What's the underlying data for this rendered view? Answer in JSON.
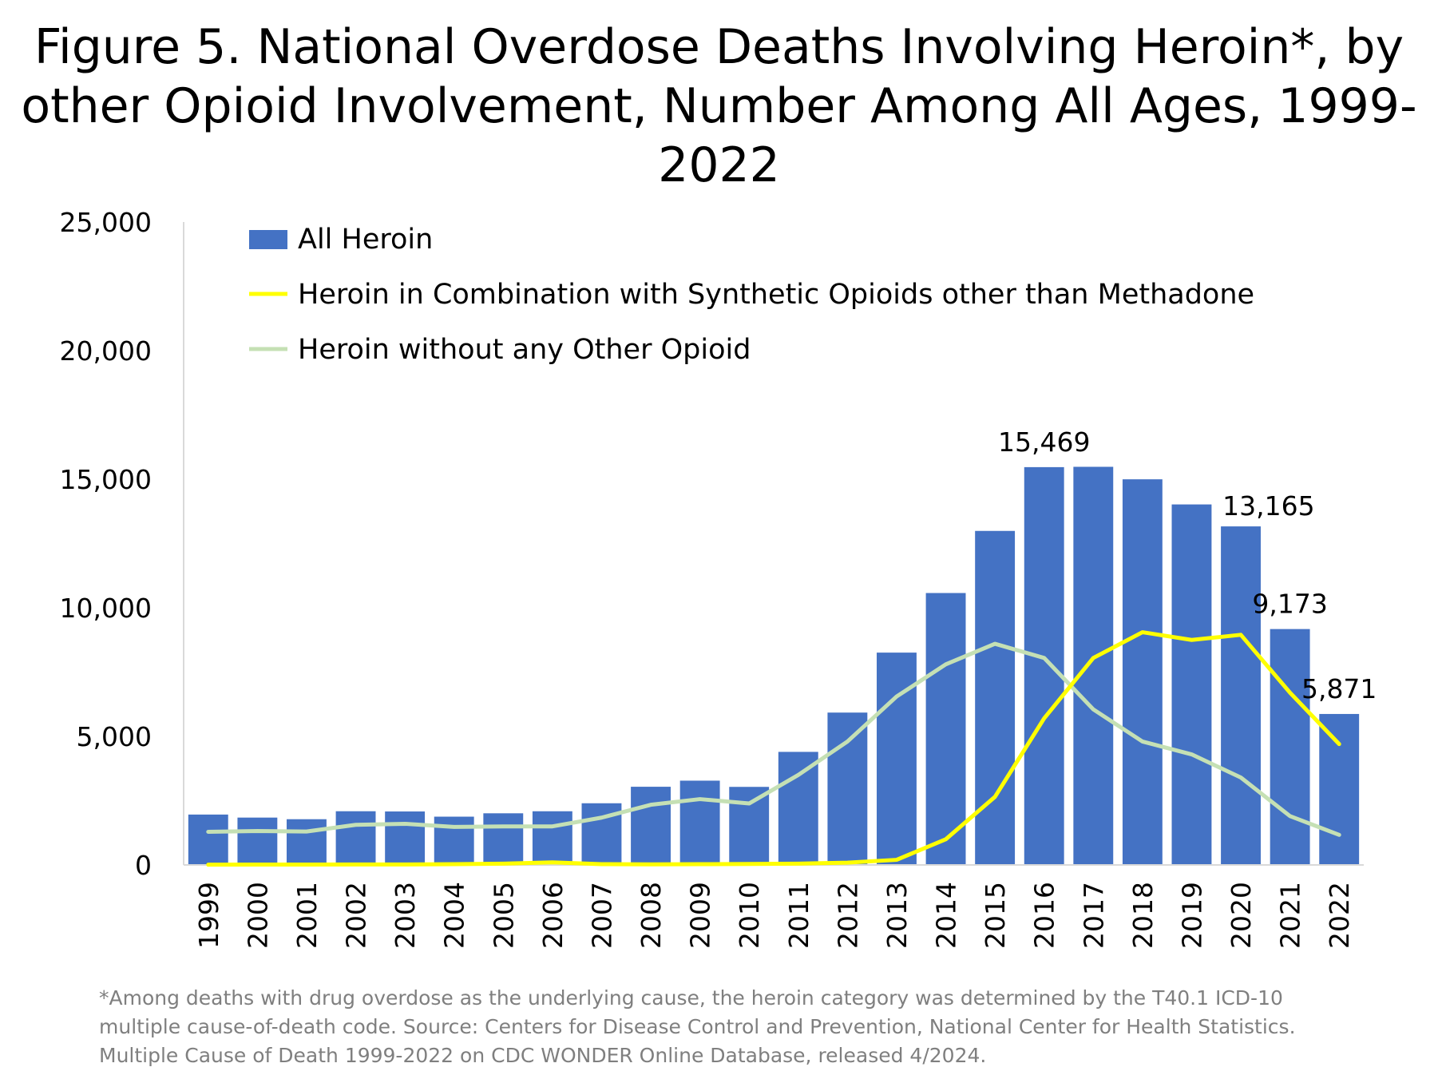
{
  "title": "Figure 5. National Overdose Deaths Involving Heroin*, by other Opioid Involvement, Number Among All Ages, 1999-2022",
  "footnote": "*Among deaths with drug overdose as the underlying cause, the heroin category was determined by the T40.1 ICD-10 multiple cause-of-death code. Source: Centers for Disease Control and Prevention, National Center for Health Statistics. Multiple Cause of Death 1999-2022 on CDC WONDER Online Database, released 4/2024.",
  "colors": {
    "bar": "#4472C4",
    "synthetic": "#FFFF00",
    "heroin_only": "#C5E0B4"
  },
  "chart_data": {
    "type": "bar",
    "categories": [
      "1999",
      "2000",
      "2001",
      "2002",
      "2003",
      "2004",
      "2005",
      "2006",
      "2007",
      "2008",
      "2009",
      "2010",
      "2011",
      "2012",
      "2013",
      "2014",
      "2015",
      "2016",
      "2017",
      "2018",
      "2019",
      "2020",
      "2021",
      "2022"
    ],
    "ylim": [
      0,
      25000
    ],
    "yticks": [
      "0",
      "5,000",
      "10,000",
      "15,000",
      "20,000",
      "25,000"
    ],
    "ytick_values": [
      0,
      5000,
      10000,
      15000,
      20000,
      25000
    ],
    "grid": false,
    "legend_position": "top-left",
    "series": [
      {
        "name": "All Heroin",
        "kind": "bar",
        "values": [
          1960,
          1842,
          1779,
          2089,
          2080,
          1878,
          2009,
          2088,
          2399,
          3041,
          3278,
          3036,
          4397,
          5925,
          8257,
          10574,
          12989,
          15469,
          15482,
          14996,
          14019,
          13165,
          9173,
          5871
        ]
      },
      {
        "name": "Heroin in Combination with Synthetic Opioids other than Methadone",
        "kind": "line",
        "values": [
          10,
          15,
          15,
          20,
          20,
          30,
          50,
          100,
          30,
          25,
          30,
          40,
          50,
          90,
          200,
          1000,
          2650,
          5700,
          8050,
          9050,
          8750,
          8950,
          6700,
          4700
        ]
      },
      {
        "name": "Heroin without any Other Opioid",
        "kind": "line",
        "values": [
          1290,
          1320,
          1300,
          1560,
          1600,
          1480,
          1500,
          1500,
          1840,
          2340,
          2560,
          2390,
          3500,
          4800,
          6550,
          7800,
          8600,
          8050,
          6050,
          4800,
          4300,
          3400,
          1900,
          1170
        ]
      }
    ],
    "data_labels": [
      {
        "category": "2016",
        "text": "15,469"
      },
      {
        "category": "2020",
        "text": "13,165"
      },
      {
        "category": "2021",
        "text": "9,173"
      },
      {
        "category": "2022",
        "text": "5,871"
      }
    ]
  }
}
